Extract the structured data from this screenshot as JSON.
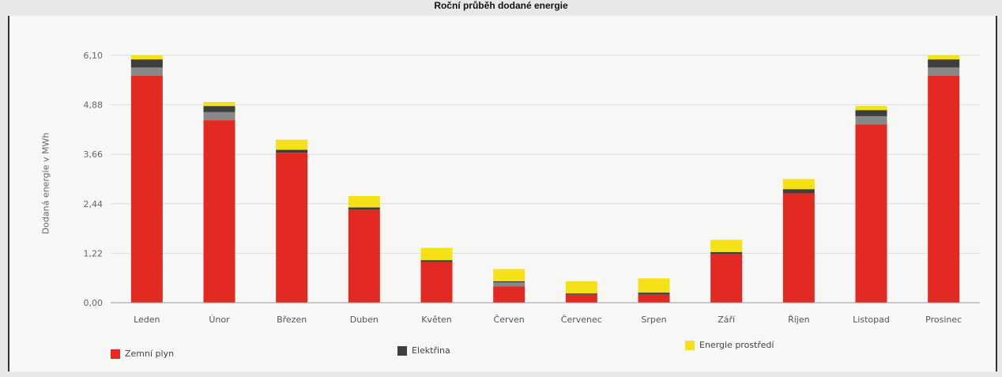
{
  "chart_title": "Roční průběh dodané energie",
  "chart_data": {
    "type": "bar",
    "stacked": true,
    "categories": [
      "Leden",
      "Únor",
      "Březen",
      "Duben",
      "Květen",
      "Červen",
      "Červenec",
      "Srpen",
      "Září",
      "Říjen",
      "Listopad",
      "Prosinec"
    ],
    "series": [
      {
        "name": "Zemní plyn",
        "color": "#e32a22",
        "values": [
          5.6,
          4.5,
          3.7,
          2.3,
          1.0,
          0.4,
          0.2,
          0.2,
          1.2,
          2.7,
          4.4,
          5.6
        ]
      },
      {
        "name": "Elektřina",
        "color": "#3e3e3e",
        "values": [
          0.2,
          0.15,
          0.07,
          0.05,
          0.05,
          0.03,
          0.03,
          0.05,
          0.05,
          0.1,
          0.15,
          0.2
        ]
      },
      {
        "name": "Energie prostředí",
        "color": "#f6e017",
        "values": [
          0.1,
          0.1,
          0.25,
          0.28,
          0.3,
          0.3,
          0.3,
          0.35,
          0.3,
          0.25,
          0.1,
          0.1
        ]
      },
      {
        "name": "",
        "color": "#888888",
        "values": [
          0.2,
          0.2,
          0,
          0,
          0,
          0.1,
          0,
          0,
          0,
          0,
          0.2,
          0.2
        ]
      }
    ],
    "ylabel": "Dodaná energie v MWh",
    "yticks": [
      "0,00",
      "1,22",
      "2,44",
      "3,66",
      "4,88",
      "6,10"
    ],
    "ylim": [
      0,
      6.1
    ],
    "grid": true,
    "legend_position": "bottom"
  }
}
